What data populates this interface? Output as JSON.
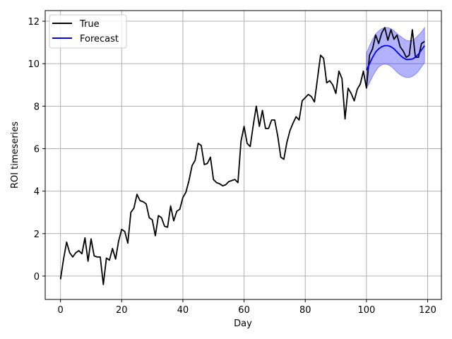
{
  "chart_data": {
    "type": "line",
    "title": "",
    "xlabel": "Day",
    "ylabel": "ROI timeseries",
    "xlim": [
      -5,
      124.5
    ],
    "ylim": [
      -1.1,
      12.5
    ],
    "xticks": [
      0,
      20,
      40,
      60,
      80,
      100,
      120
    ],
    "yticks": [
      0,
      2,
      4,
      6,
      8,
      10,
      12
    ],
    "xtick_labels": [
      "0",
      "20",
      "40",
      "60",
      "80",
      "100",
      "120"
    ],
    "ytick_labels": [
      "0",
      "2",
      "4",
      "6",
      "8",
      "10",
      "12"
    ],
    "grid": true,
    "legend": "top-left",
    "colors": {
      "true": "#000000",
      "forecast": "#0000ff",
      "band": "#0000ff",
      "grid": "#b0b0b0"
    },
    "legend_entries": [
      "True",
      "Forecast"
    ],
    "series": [
      {
        "name": "True",
        "x": [
          0,
          1,
          2,
          3,
          4,
          5,
          6,
          7,
          8,
          9,
          10,
          11,
          12,
          13,
          14,
          15,
          16,
          17,
          18,
          19,
          20,
          21,
          22,
          23,
          24,
          25,
          26,
          27,
          28,
          29,
          30,
          31,
          32,
          33,
          34,
          35,
          36,
          37,
          38,
          39,
          40,
          41,
          42,
          43,
          44,
          45,
          46,
          47,
          48,
          49,
          50,
          51,
          52,
          53,
          54,
          55,
          56,
          57,
          58,
          59,
          60,
          61,
          62,
          63,
          64,
          65,
          66,
          67,
          68,
          69,
          70,
          71,
          72,
          73,
          74,
          75,
          76,
          77,
          78,
          79,
          80,
          81,
          82,
          83,
          84,
          85,
          86,
          87,
          88,
          89,
          90,
          91,
          92,
          93,
          94,
          95,
          96,
          97,
          98,
          99,
          100,
          101,
          102,
          103,
          104,
          105,
          106,
          107,
          108,
          109,
          110,
          111,
          112,
          113,
          114,
          115,
          116,
          117,
          118,
          119
        ],
        "values": [
          -0.15,
          0.8,
          1.6,
          1.1,
          0.9,
          1.1,
          1.2,
          1.05,
          1.8,
          0.7,
          1.75,
          0.95,
          0.9,
          0.9,
          -0.4,
          0.85,
          0.75,
          1.3,
          0.8,
          1.65,
          2.2,
          2.1,
          1.55,
          3.0,
          3.2,
          3.85,
          3.55,
          3.5,
          3.4,
          2.75,
          2.65,
          1.9,
          2.85,
          2.75,
          2.35,
          2.3,
          3.3,
          2.6,
          3.05,
          3.15,
          3.7,
          3.95,
          4.5,
          5.2,
          5.45,
          6.25,
          6.15,
          5.25,
          5.3,
          5.6,
          4.55,
          4.4,
          4.35,
          4.25,
          4.3,
          4.45,
          4.5,
          4.55,
          4.4,
          6.35,
          7.05,
          6.25,
          6.1,
          7.1,
          8.0,
          7.05,
          7.8,
          6.95,
          6.95,
          7.35,
          7.35,
          6.6,
          5.6,
          5.5,
          6.3,
          6.85,
          7.2,
          7.5,
          7.35,
          8.25,
          8.4,
          8.55,
          8.45,
          8.2,
          9.3,
          10.4,
          10.25,
          9.1,
          9.2,
          9.0,
          8.6,
          9.65,
          9.3,
          7.4,
          8.85,
          8.6,
          8.25,
          8.8,
          9.05,
          9.65,
          8.85,
          10.4,
          10.7,
          11.35,
          10.95,
          11.45,
          11.7,
          11.1,
          11.6,
          11.15,
          11.35,
          10.8,
          10.6,
          10.3,
          10.4,
          11.6,
          10.3,
          10.3,
          10.95,
          11.05
        ]
      },
      {
        "name": "Forecast",
        "x": [
          100,
          101,
          102,
          103,
          104,
          105,
          106,
          107,
          108,
          109,
          110,
          111,
          112,
          113,
          114,
          115,
          116,
          117,
          118,
          119
        ],
        "values": [
          9.7,
          10.0,
          10.3,
          10.55,
          10.7,
          10.8,
          10.85,
          10.85,
          10.8,
          10.7,
          10.55,
          10.4,
          10.28,
          10.2,
          10.2,
          10.22,
          10.3,
          10.45,
          10.65,
          10.85
        ],
        "lower": [
          8.85,
          9.1,
          9.4,
          9.65,
          9.85,
          9.95,
          9.98,
          9.95,
          9.88,
          9.75,
          9.6,
          9.48,
          9.4,
          9.35,
          9.35,
          9.4,
          9.5,
          9.65,
          9.85,
          10.05
        ],
        "upper": [
          10.5,
          10.85,
          11.15,
          11.4,
          11.55,
          11.65,
          11.7,
          11.7,
          11.65,
          11.55,
          11.42,
          11.3,
          11.2,
          11.1,
          11.08,
          11.1,
          11.2,
          11.35,
          11.5,
          11.7
        ]
      }
    ]
  }
}
